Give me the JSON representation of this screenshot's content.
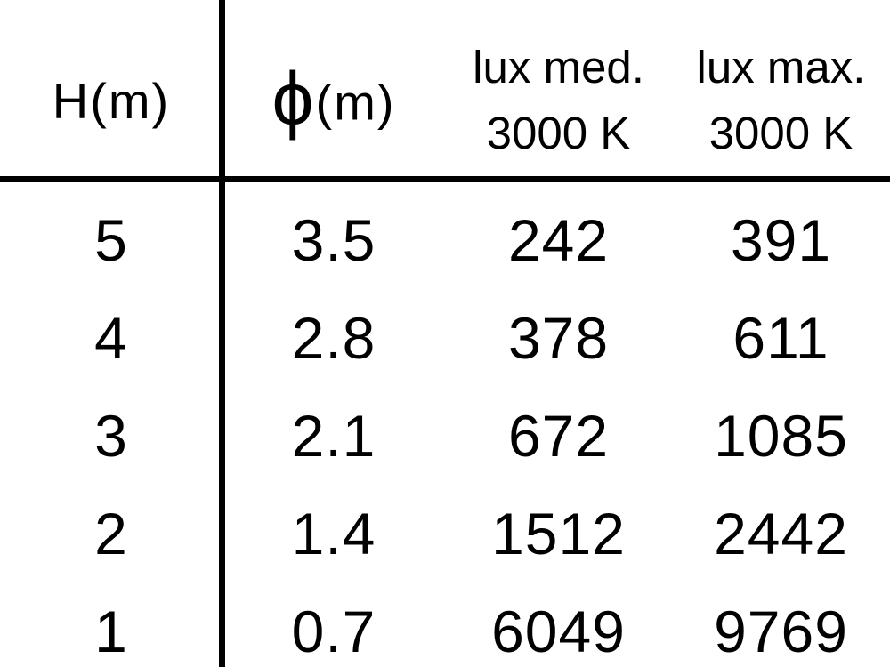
{
  "colors": {
    "background": "#ffffff",
    "text": "#000000",
    "rules": "#000000"
  },
  "header": {
    "col1_label": "H(m)",
    "col2_symbol": "ϕ",
    "col2_unit": "(m)",
    "col3_line1": "lux med.",
    "col3_line2": "3000 K",
    "col4_line1": "lux max.",
    "col4_line2": "3000 K"
  },
  "rows": [
    {
      "h": "5",
      "phi": "3.5",
      "lux_med": "242",
      "lux_max": "391"
    },
    {
      "h": "4",
      "phi": "2.8",
      "lux_med": "378",
      "lux_max": "611"
    },
    {
      "h": "3",
      "phi": "2.1",
      "lux_med": "672",
      "lux_max": "1085"
    },
    {
      "h": "2",
      "phi": "1.4",
      "lux_med": "1512",
      "lux_max": "2442"
    },
    {
      "h": "1",
      "phi": "0.7",
      "lux_med": "6049",
      "lux_max": "9769"
    }
  ],
  "chart_data": {
    "type": "table",
    "columns": [
      "H(m)",
      "ϕ(m)",
      "lux med. 3000 K",
      "lux max. 3000 K"
    ],
    "rows": [
      [
        5,
        3.5,
        242,
        391
      ],
      [
        4,
        2.8,
        378,
        611
      ],
      [
        3,
        2.1,
        672,
        1085
      ],
      [
        2,
        1.4,
        1512,
        2442
      ],
      [
        1,
        0.7,
        6049,
        9769
      ]
    ],
    "layout_hints": {
      "vertical_divider_after_column": 1,
      "horizontal_divider_below_header": true,
      "grid": "off",
      "alignment": "center"
    }
  }
}
